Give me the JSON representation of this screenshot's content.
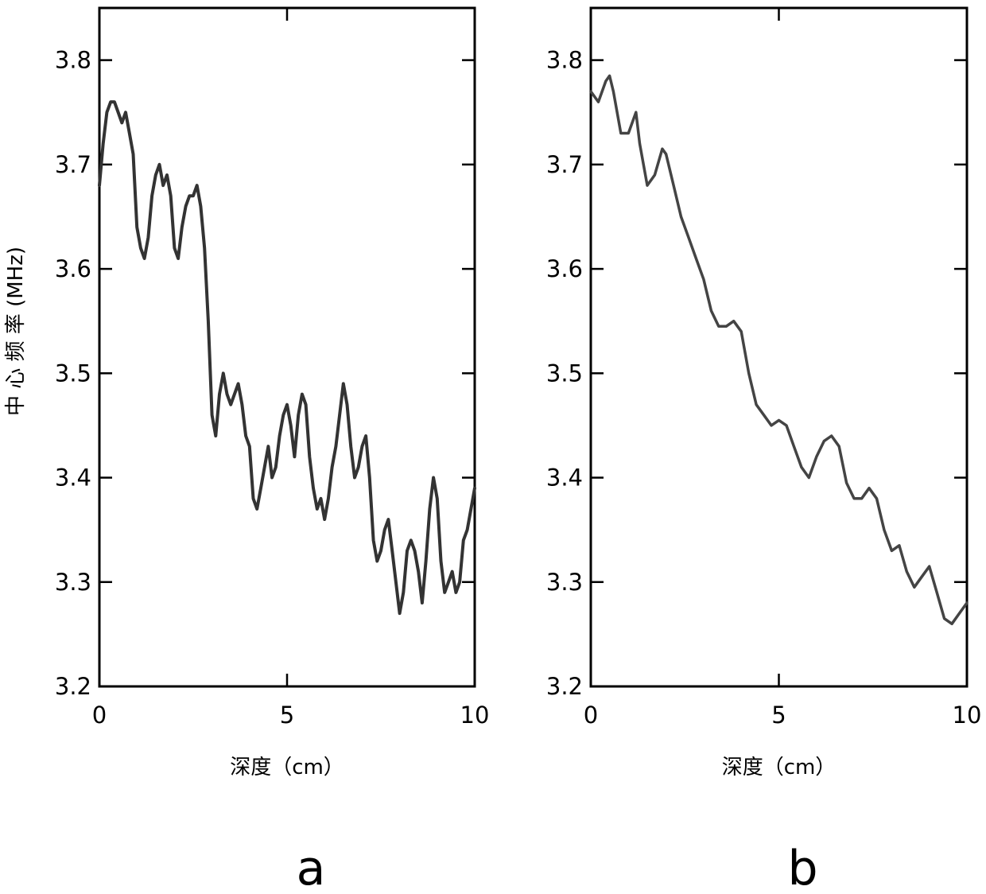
{
  "chart_data": [
    {
      "type": "line",
      "panel_label": "a",
      "xlabel": "深度（cm）",
      "ylabel": "中 心 频 率 (MHz)",
      "xlim": [
        0,
        10
      ],
      "ylim": [
        3.2,
        3.85
      ],
      "xticks": [
        0,
        5,
        10
      ],
      "yticks": [
        3.2,
        3.3,
        3.4,
        3.5,
        3.6,
        3.7,
        3.8
      ],
      "grid": false,
      "line_color": "#333333",
      "series": [
        {
          "x": [
            0,
            0.1,
            0.2,
            0.3,
            0.4,
            0.5,
            0.6,
            0.7,
            0.8,
            0.9,
            1.0,
            1.1,
            1.2,
            1.3,
            1.4,
            1.5,
            1.6,
            1.7,
            1.8,
            1.9,
            2.0,
            2.1,
            2.2,
            2.3,
            2.4,
            2.5,
            2.6,
            2.7,
            2.8,
            2.9,
            3.0,
            3.1,
            3.2,
            3.3,
            3.4,
            3.5,
            3.6,
            3.7,
            3.8,
            3.9,
            4.0,
            4.1,
            4.2,
            4.3,
            4.4,
            4.5,
            4.6,
            4.7,
            4.8,
            4.9,
            5.0,
            5.1,
            5.2,
            5.3,
            5.4,
            5.5,
            5.6,
            5.7,
            5.8,
            5.9,
            6.0,
            6.1,
            6.2,
            6.3,
            6.4,
            6.5,
            6.6,
            6.7,
            6.8,
            6.9,
            7.0,
            7.1,
            7.2,
            7.3,
            7.4,
            7.5,
            7.6,
            7.7,
            7.8,
            7.9,
            8.0,
            8.1,
            8.2,
            8.3,
            8.4,
            8.5,
            8.6,
            8.7,
            8.8,
            8.9,
            9.0,
            9.1,
            9.2,
            9.3,
            9.4,
            9.5,
            9.6,
            9.7,
            9.8,
            9.9,
            10.0
          ],
          "values": [
            3.68,
            3.72,
            3.75,
            3.76,
            3.76,
            3.75,
            3.74,
            3.75,
            3.73,
            3.71,
            3.64,
            3.62,
            3.61,
            3.63,
            3.67,
            3.69,
            3.7,
            3.68,
            3.69,
            3.67,
            3.62,
            3.61,
            3.64,
            3.66,
            3.67,
            3.67,
            3.68,
            3.66,
            3.62,
            3.55,
            3.46,
            3.44,
            3.48,
            3.5,
            3.48,
            3.47,
            3.48,
            3.49,
            3.47,
            3.44,
            3.43,
            3.38,
            3.37,
            3.39,
            3.41,
            3.43,
            3.4,
            3.41,
            3.44,
            3.46,
            3.47,
            3.45,
            3.42,
            3.46,
            3.48,
            3.47,
            3.42,
            3.39,
            3.37,
            3.38,
            3.36,
            3.38,
            3.41,
            3.43,
            3.46,
            3.49,
            3.47,
            3.43,
            3.4,
            3.41,
            3.43,
            3.44,
            3.4,
            3.34,
            3.32,
            3.33,
            3.35,
            3.36,
            3.33,
            3.3,
            3.27,
            3.29,
            3.33,
            3.34,
            3.33,
            3.31,
            3.28,
            3.32,
            3.37,
            3.4,
            3.38,
            3.32,
            3.29,
            3.3,
            3.31,
            3.29,
            3.3,
            3.34,
            3.35,
            3.37,
            3.39
          ]
        }
      ]
    },
    {
      "type": "line",
      "panel_label": "b",
      "xlabel": "深度（cm）",
      "ylabel": "",
      "xlim": [
        0,
        10
      ],
      "ylim": [
        3.2,
        3.85
      ],
      "xticks": [
        0,
        5,
        10
      ],
      "yticks": [
        3.2,
        3.3,
        3.4,
        3.5,
        3.6,
        3.7,
        3.8
      ],
      "grid": false,
      "line_color": "#444444",
      "series": [
        {
          "x": [
            0,
            0.2,
            0.4,
            0.5,
            0.6,
            0.8,
            1.0,
            1.2,
            1.3,
            1.5,
            1.7,
            1.9,
            2.0,
            2.2,
            2.4,
            2.6,
            2.8,
            3.0,
            3.2,
            3.4,
            3.6,
            3.8,
            4.0,
            4.2,
            4.4,
            4.6,
            4.8,
            5.0,
            5.2,
            5.4,
            5.6,
            5.8,
            6.0,
            6.2,
            6.4,
            6.6,
            6.8,
            7.0,
            7.2,
            7.4,
            7.6,
            7.8,
            8.0,
            8.2,
            8.4,
            8.6,
            8.8,
            9.0,
            9.2,
            9.4,
            9.6,
            9.8,
            10.0
          ],
          "values": [
            3.77,
            3.76,
            3.78,
            3.785,
            3.77,
            3.73,
            3.73,
            3.75,
            3.72,
            3.68,
            3.69,
            3.715,
            3.71,
            3.68,
            3.65,
            3.63,
            3.61,
            3.59,
            3.56,
            3.545,
            3.545,
            3.55,
            3.54,
            3.5,
            3.47,
            3.46,
            3.45,
            3.455,
            3.45,
            3.43,
            3.41,
            3.4,
            3.42,
            3.435,
            3.44,
            3.43,
            3.395,
            3.38,
            3.38,
            3.39,
            3.38,
            3.35,
            3.33,
            3.335,
            3.31,
            3.295,
            3.305,
            3.315,
            3.29,
            3.265,
            3.26,
            3.27,
            3.28
          ]
        }
      ]
    }
  ]
}
